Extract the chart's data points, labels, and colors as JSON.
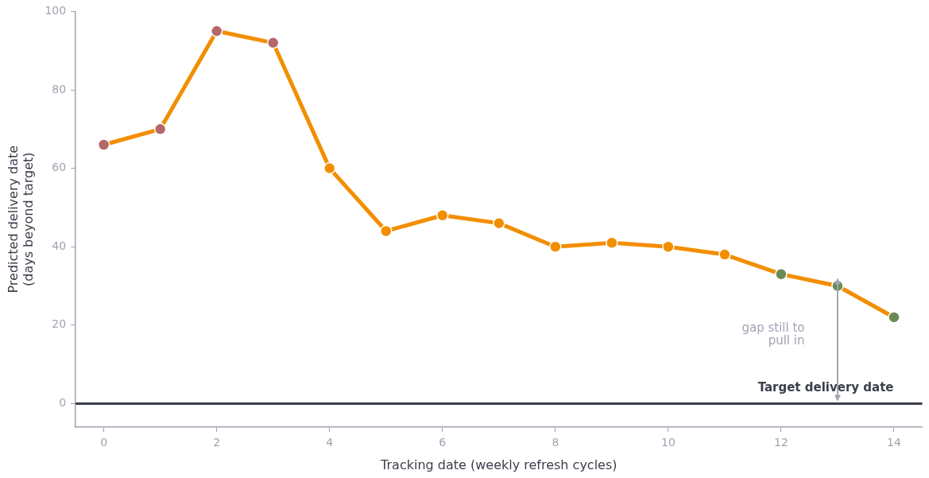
{
  "chart_data": {
    "type": "line",
    "xlabel": "Tracking date (weekly refresh cycles)",
    "ylabel": "Predicted delivery date\n(days beyond target)",
    "x": [
      0,
      1,
      2,
      3,
      4,
      5,
      6,
      7,
      8,
      9,
      10,
      11,
      12,
      13,
      14
    ],
    "series": [
      {
        "color": "#f28e00",
        "values": [
          66,
          70,
          95,
          92,
          60,
          44,
          48,
          46,
          40,
          41,
          40,
          38,
          33,
          30,
          22
        ],
        "colors": [
          "#b5676a",
          "#b5676a",
          "#b5676a",
          "#b5676a",
          "#f28e00",
          "#f28e00",
          "#f28e00",
          "#f28e00",
          "#f28e00",
          "#f28e00",
          "#f28e00",
          "#f28e00",
          "#6a8a55",
          "#6a8a55",
          "#6a8a55"
        ]
      }
    ],
    "xlim": [
      -0.5,
      14.5
    ],
    "xticks": [
      0,
      2,
      4,
      6,
      8,
      10,
      12,
      14
    ],
    "ylim": [
      -6,
      100
    ],
    "yticks": [
      0,
      20,
      40,
      60,
      80,
      100
    ],
    "ref_lines": [
      {
        "axis": "y",
        "value": 0,
        "label": "Target delivery date",
        "color": "#3a3f4a",
        "line_style": "solid"
      }
    ],
    "annotations": [
      "gap still to pull in"
    ],
    "grid": false,
    "legend": false,
    "marker": "circle",
    "line_style": "solid"
  }
}
